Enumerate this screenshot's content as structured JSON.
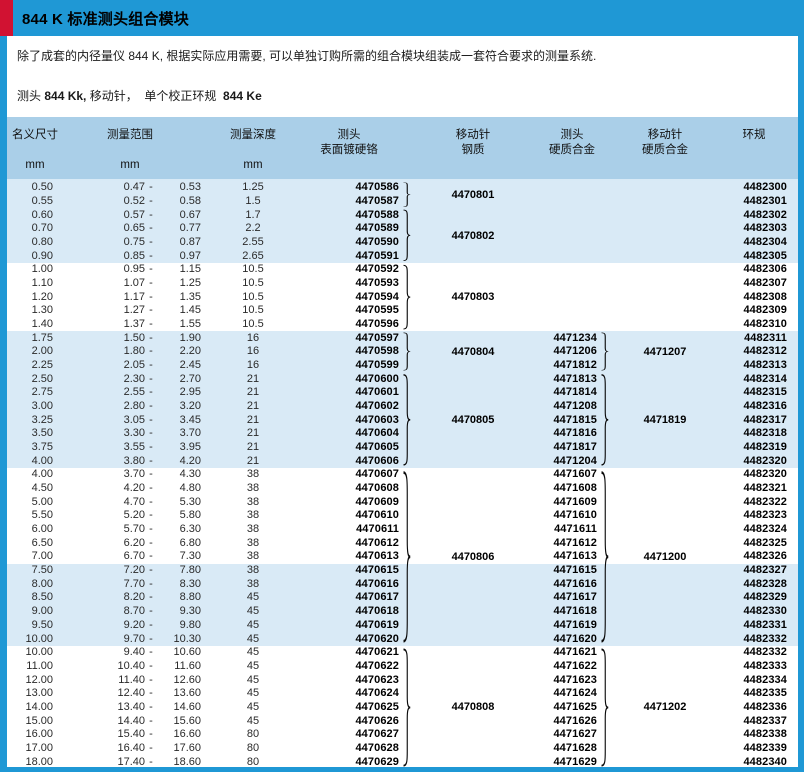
{
  "page": {
    "title": "844 K 标准测头组合模块",
    "description": "除了成套的内径量仪 844 K, 根据实际应用需要, 可以单独订购所需的组合模块组装成一套符合要求的测量系统.",
    "subtitle": {
      "lead": "测头 ",
      "model1": "844 Kk,",
      "middle": " 移动针，  单个校正环规  ",
      "model2": "844 Ke"
    }
  },
  "colors": {
    "frame_blue": "#1f98d5",
    "accent_red": "#d11232",
    "header_band_blue": "#aacfe8",
    "row_shade_blue": "#d9eaf6",
    "text_black": "#1a1a1a"
  },
  "table": {
    "headers": {
      "nominal": {
        "label": "名义尺寸",
        "unit": "mm"
      },
      "range": {
        "label": "测量范围",
        "unit": "mm"
      },
      "depth": {
        "label": "测量深度",
        "unit": "mm"
      },
      "probe_chrome": {
        "line1": "测头",
        "line2": "表面镀硬铬"
      },
      "needle_steel": {
        "line1": "移动针",
        "line2": "钢质"
      },
      "probe_carbide": {
        "line1": "测头",
        "line2": "硬质合金"
      },
      "needle_carbide": {
        "line1": "移动针",
        "line2": "硬质合金"
      },
      "ring": {
        "label": "环规"
      }
    },
    "range_separator": "-",
    "row_fields": [
      "nominal",
      "range_min",
      "range_max",
      "depth",
      "probe_chrome",
      "probe_carbide",
      "ring"
    ],
    "shaded_row_ranges": [
      [
        0,
        5
      ],
      [
        11,
        20
      ],
      [
        28,
        33
      ]
    ],
    "groups": [
      {
        "needle_steel": "4470801",
        "needle_carbide": "",
        "chrome_brace": true,
        "carbide_brace": false,
        "rows": [
          [
            "0.50",
            "0.47",
            "0.53",
            "1.25",
            "4470586",
            "",
            "4482300"
          ],
          [
            "0.55",
            "0.52",
            "0.58",
            "1.5",
            "4470587",
            "",
            "4482301"
          ]
        ]
      },
      {
        "needle_steel": "4470802",
        "needle_carbide": "",
        "chrome_brace": true,
        "carbide_brace": false,
        "rows": [
          [
            "0.60",
            "0.57",
            "0.67",
            "1.7",
            "4470588",
            "",
            "4482302"
          ],
          [
            "0.70",
            "0.65",
            "0.77",
            "2.2",
            "4470589",
            "",
            "4482303"
          ],
          [
            "0.80",
            "0.75",
            "0.87",
            "2.55",
            "4470590",
            "",
            "4482304"
          ],
          [
            "0.90",
            "0.85",
            "0.97",
            "2.65",
            "4470591",
            "",
            "4482305"
          ]
        ]
      },
      {
        "needle_steel": "4470803",
        "needle_carbide": "",
        "chrome_brace": true,
        "carbide_brace": false,
        "rows": [
          [
            "1.00",
            "0.95",
            "1.15",
            "10.5",
            "4470592",
            "",
            "4482306"
          ],
          [
            "1.10",
            "1.07",
            "1.25",
            "10.5",
            "4470593",
            "",
            "4482307"
          ],
          [
            "1.20",
            "1.17",
            "1.35",
            "10.5",
            "4470594",
            "",
            "4482308"
          ],
          [
            "1.30",
            "1.27",
            "1.45",
            "10.5",
            "4470595",
            "",
            "4482309"
          ],
          [
            "1.40",
            "1.37",
            "1.55",
            "10.5",
            "4470596",
            "",
            "4482310"
          ]
        ]
      },
      {
        "needle_steel": "4470804",
        "needle_carbide": "4471207",
        "chrome_brace": true,
        "carbide_brace": true,
        "rows": [
          [
            "1.75",
            "1.50",
            "1.90",
            "16",
            "4470597",
            "4471234",
            "4482311"
          ],
          [
            "2.00",
            "1.80",
            "2.20",
            "16",
            "4470598",
            "4471206",
            "4482312"
          ],
          [
            "2.25",
            "2.05",
            "2.45",
            "16",
            "4470599",
            "4471812",
            "4482313"
          ]
        ]
      },
      {
        "needle_steel": "4470805",
        "needle_carbide": "4471819",
        "chrome_brace": true,
        "carbide_brace": true,
        "rows": [
          [
            "2.50",
            "2.30",
            "2.70",
            "21",
            "4470600",
            "4471813",
            "4482314"
          ],
          [
            "2.75",
            "2.55",
            "2.95",
            "21",
            "4470601",
            "4471814",
            "4482315"
          ],
          [
            "3.00",
            "2.80",
            "3.20",
            "21",
            "4470602",
            "4471208",
            "4482316"
          ],
          [
            "3.25",
            "3.05",
            "3.45",
            "21",
            "4470603",
            "4471815",
            "4482317"
          ],
          [
            "3.50",
            "3.30",
            "3.70",
            "21",
            "4470604",
            "4471816",
            "4482318"
          ],
          [
            "3.75",
            "3.55",
            "3.95",
            "21",
            "4470605",
            "4471817",
            "4482319"
          ],
          [
            "4.00",
            "3.80",
            "4.20",
            "21",
            "4470606",
            "4471204",
            "4482320"
          ]
        ]
      },
      {
        "needle_steel": "4470806",
        "needle_carbide": "4471200",
        "chrome_brace": true,
        "carbide_brace": true,
        "rows": [
          [
            "4.00",
            "3.70",
            "4.30",
            "38",
            "4470607",
            "4471607",
            "4482320"
          ],
          [
            "4.50",
            "4.20",
            "4.80",
            "38",
            "4470608",
            "4471608",
            "4482321"
          ],
          [
            "5.00",
            "4.70",
            "5.30",
            "38",
            "4470609",
            "4471609",
            "4482322"
          ],
          [
            "5.50",
            "5.20",
            "5.80",
            "38",
            "4470610",
            "4471610",
            "4482323"
          ],
          [
            "6.00",
            "5.70",
            "6.30",
            "38",
            "4470611",
            "4471611",
            "4482324"
          ],
          [
            "6.50",
            "6.20",
            "6.80",
            "38",
            "4470612",
            "4471612",
            "4482325"
          ],
          [
            "7.00",
            "6.70",
            "7.30",
            "38",
            "4470613",
            "4471613",
            "4482326"
          ],
          [
            "7.50",
            "7.20",
            "7.80",
            "38",
            "4470615",
            "4471615",
            "4482327"
          ],
          [
            "8.00",
            "7.70",
            "8.30",
            "38",
            "4470616",
            "4471616",
            "4482328"
          ],
          [
            "8.50",
            "8.20",
            "8.80",
            "45",
            "4470617",
            "4471617",
            "4482329"
          ],
          [
            "9.00",
            "8.70",
            "9.30",
            "45",
            "4470618",
            "4471618",
            "4482330"
          ],
          [
            "9.50",
            "9.20",
            "9.80",
            "45",
            "4470619",
            "4471619",
            "4482331"
          ],
          [
            "10.00",
            "9.70",
            "10.30",
            "45",
            "4470620",
            "4471620",
            "4482332"
          ]
        ]
      },
      {
        "needle_steel": "4470808",
        "needle_carbide": "4471202",
        "chrome_brace": true,
        "carbide_brace": true,
        "rows": [
          [
            "10.00",
            "9.40",
            "10.60",
            "45",
            "4470621",
            "4471621",
            "4482332"
          ],
          [
            "11.00",
            "10.40",
            "11.60",
            "45",
            "4470622",
            "4471622",
            "4482333"
          ],
          [
            "12.00",
            "11.40",
            "12.60",
            "45",
            "4470623",
            "4471623",
            "4482334"
          ],
          [
            "13.00",
            "12.40",
            "13.60",
            "45",
            "4470624",
            "4471624",
            "4482335"
          ],
          [
            "14.00",
            "13.40",
            "14.60",
            "45",
            "4470625",
            "4471625",
            "4482336"
          ],
          [
            "15.00",
            "14.40",
            "15.60",
            "45",
            "4470626",
            "4471626",
            "4482337"
          ],
          [
            "16.00",
            "15.40",
            "16.60",
            "80",
            "4470627",
            "4471627",
            "4482338"
          ],
          [
            "17.00",
            "16.40",
            "17.60",
            "80",
            "4470628",
            "4471628",
            "4482339"
          ],
          [
            "18.00",
            "17.40",
            "18.60",
            "80",
            "4470629",
            "4471629",
            "4482340"
          ]
        ]
      }
    ]
  }
}
